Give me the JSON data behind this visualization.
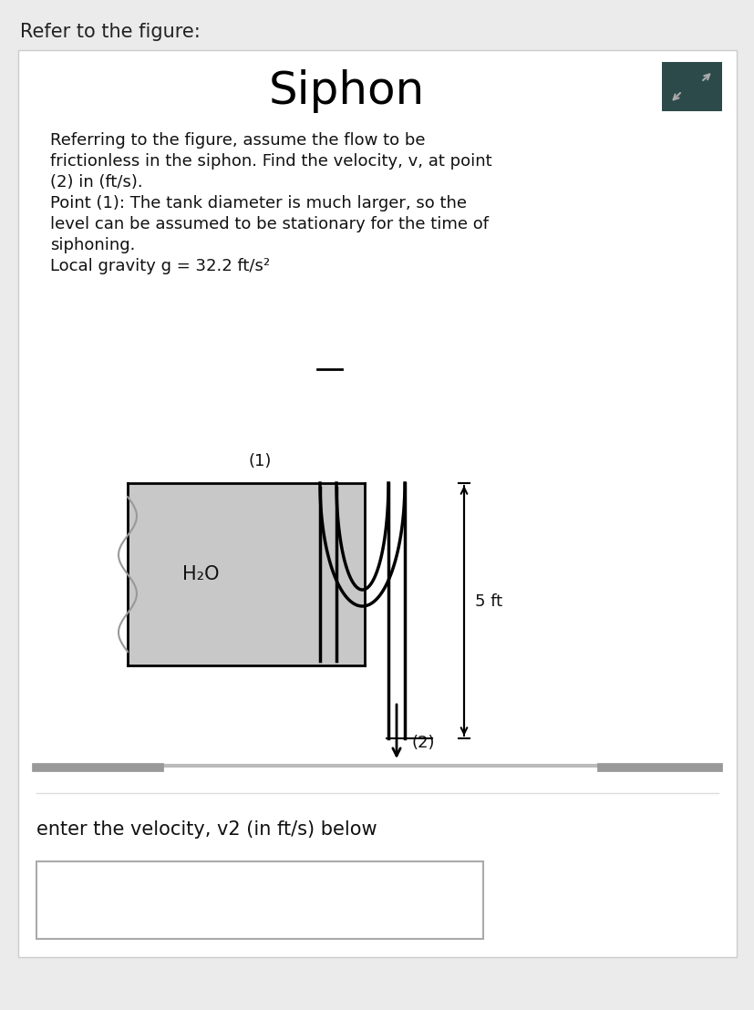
{
  "bg_color": "#ebebeb",
  "card_color": "#ffffff",
  "title": "Siphon",
  "header_text": "Refer to the figure:",
  "desc_lines": [
    "Referring to the figure, assume the flow to be",
    "frictionless in the siphon. Find the velocity, v, at point",
    "(2) in (ft/s).",
    "Point (1): The tank diameter is much larger, so the",
    "level can be assumed to be stationary for the time of",
    "siphoning.",
    "Local gravity g = 32.2 ft/s²"
  ],
  "bottom_text": "enter the velocity, v2 (in ft/s) below",
  "tank_fill_color": "#c8c8c8",
  "water_label": "H₂O",
  "point1_label": "(1)",
  "point2_label": "(2)",
  "dimension_label": "5 ft",
  "icon_bg": "#2d4a4a",
  "icon_fg": "#aaaaaa"
}
